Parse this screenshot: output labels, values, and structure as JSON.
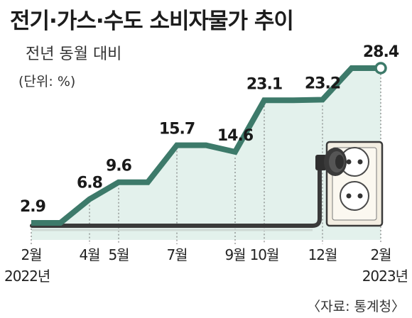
{
  "title": "전기·가스·수도 소비자물가 추이",
  "subtitle": "전년 동월 대비",
  "unit": "(단위: %)",
  "source": "〈자료: 통계청〉",
  "colors": {
    "line": "#3d7a6a",
    "area": "#e3f1ec",
    "end_marker_fill": "#ffffff"
  },
  "icons": [
    "electric-outlet-icon",
    "power-plug-icon"
  ],
  "chart_data": {
    "type": "line",
    "title": "전기·가스·수도 소비자물가 추이",
    "ylabel": "(단위: %)",
    "categories": [
      "2022-02",
      "2022-03",
      "2022-04",
      "2022-05",
      "2022-06",
      "2022-07",
      "2022-08",
      "2022-09",
      "2022-10",
      "2022-11",
      "2022-12",
      "2023-01",
      "2023-02"
    ],
    "tick_labels": [
      "2월",
      "",
      "4월",
      "5월",
      "",
      "7월",
      "",
      "9월",
      "10월",
      "",
      "12월",
      "",
      "2월"
    ],
    "year_labels": [
      {
        "index": 0,
        "text": "2022년"
      },
      {
        "index": 12,
        "text": "2023년"
      }
    ],
    "values": [
      2.9,
      2.9,
      6.8,
      9.6,
      9.6,
      15.7,
      15.7,
      14.6,
      23.1,
      23.1,
      23.2,
      28.4,
      28.4
    ],
    "data_labels": [
      {
        "index": 0,
        "text": "2.9"
      },
      {
        "index": 2,
        "text": "6.8"
      },
      {
        "index": 3,
        "text": "9.6"
      },
      {
        "index": 5,
        "text": "15.7"
      },
      {
        "index": 7,
        "text": "14.6"
      },
      {
        "index": 8,
        "text": "23.1"
      },
      {
        "index": 10,
        "text": "23.2"
      },
      {
        "index": 12,
        "text": "28.4"
      }
    ],
    "ylim": [
      0,
      30
    ],
    "grid": false,
    "legend": "none"
  }
}
